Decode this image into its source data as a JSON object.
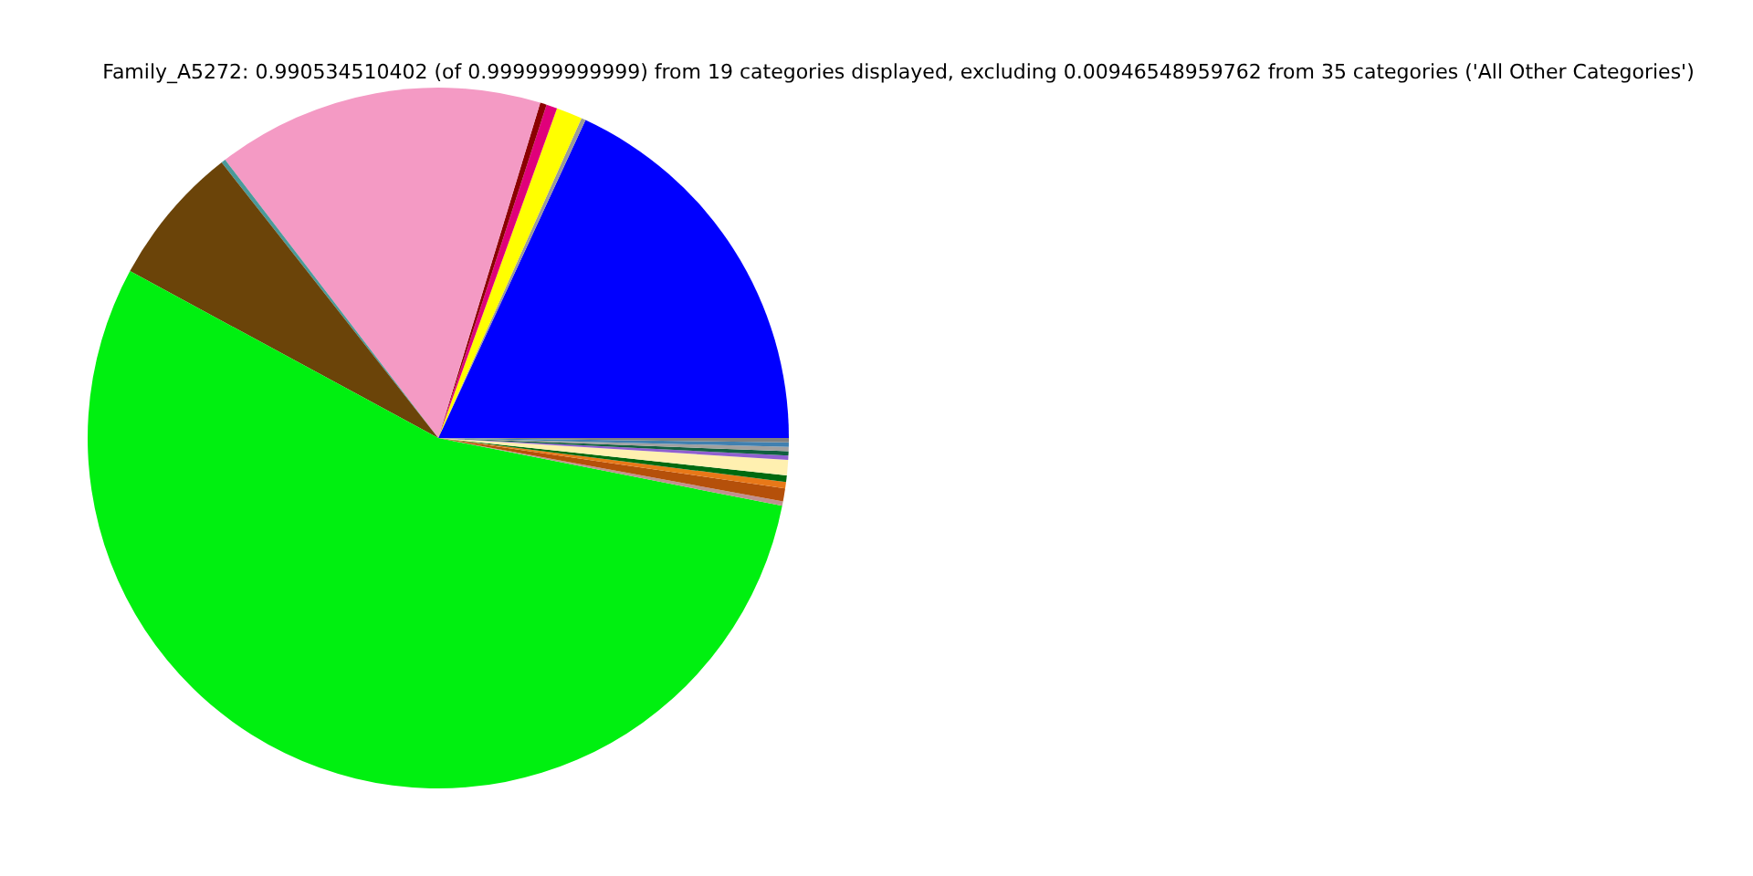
{
  "chart_data": {
    "type": "pie",
    "title": "Family_A5272: 0.990534510402 (of 0.999999999999) from 19 categories displayed, excluding 0.00946548959762 from 35 categories ('All Other Categories')",
    "categories": [
      null,
      null,
      null,
      null,
      null,
      null,
      null,
      null,
      null,
      null,
      null,
      null,
      null,
      null,
      null,
      null,
      null,
      null,
      null
    ],
    "values": [
      18.1,
      0.2,
      1.2,
      0.5,
      0.3,
      15.1,
      0.2,
      6.5,
      54.8,
      0.2,
      0.6,
      0.3,
      0.3,
      0.7,
      0.2,
      0.2,
      0.2,
      0.2,
      0.2
    ],
    "colors": [
      "#0000ff",
      "#9a9a9a",
      "#ffff00",
      "#e0007a",
      "#8b0000",
      "#f49ac4",
      "#4a9a9a",
      "#6b4409",
      "#00f010",
      "#c09090",
      "#b5500a",
      "#e87818",
      "#006a10",
      "#fff0b0",
      "#9060d0",
      "#106040",
      "#a0a0a0",
      "#4080b0",
      "#808080"
    ]
  }
}
